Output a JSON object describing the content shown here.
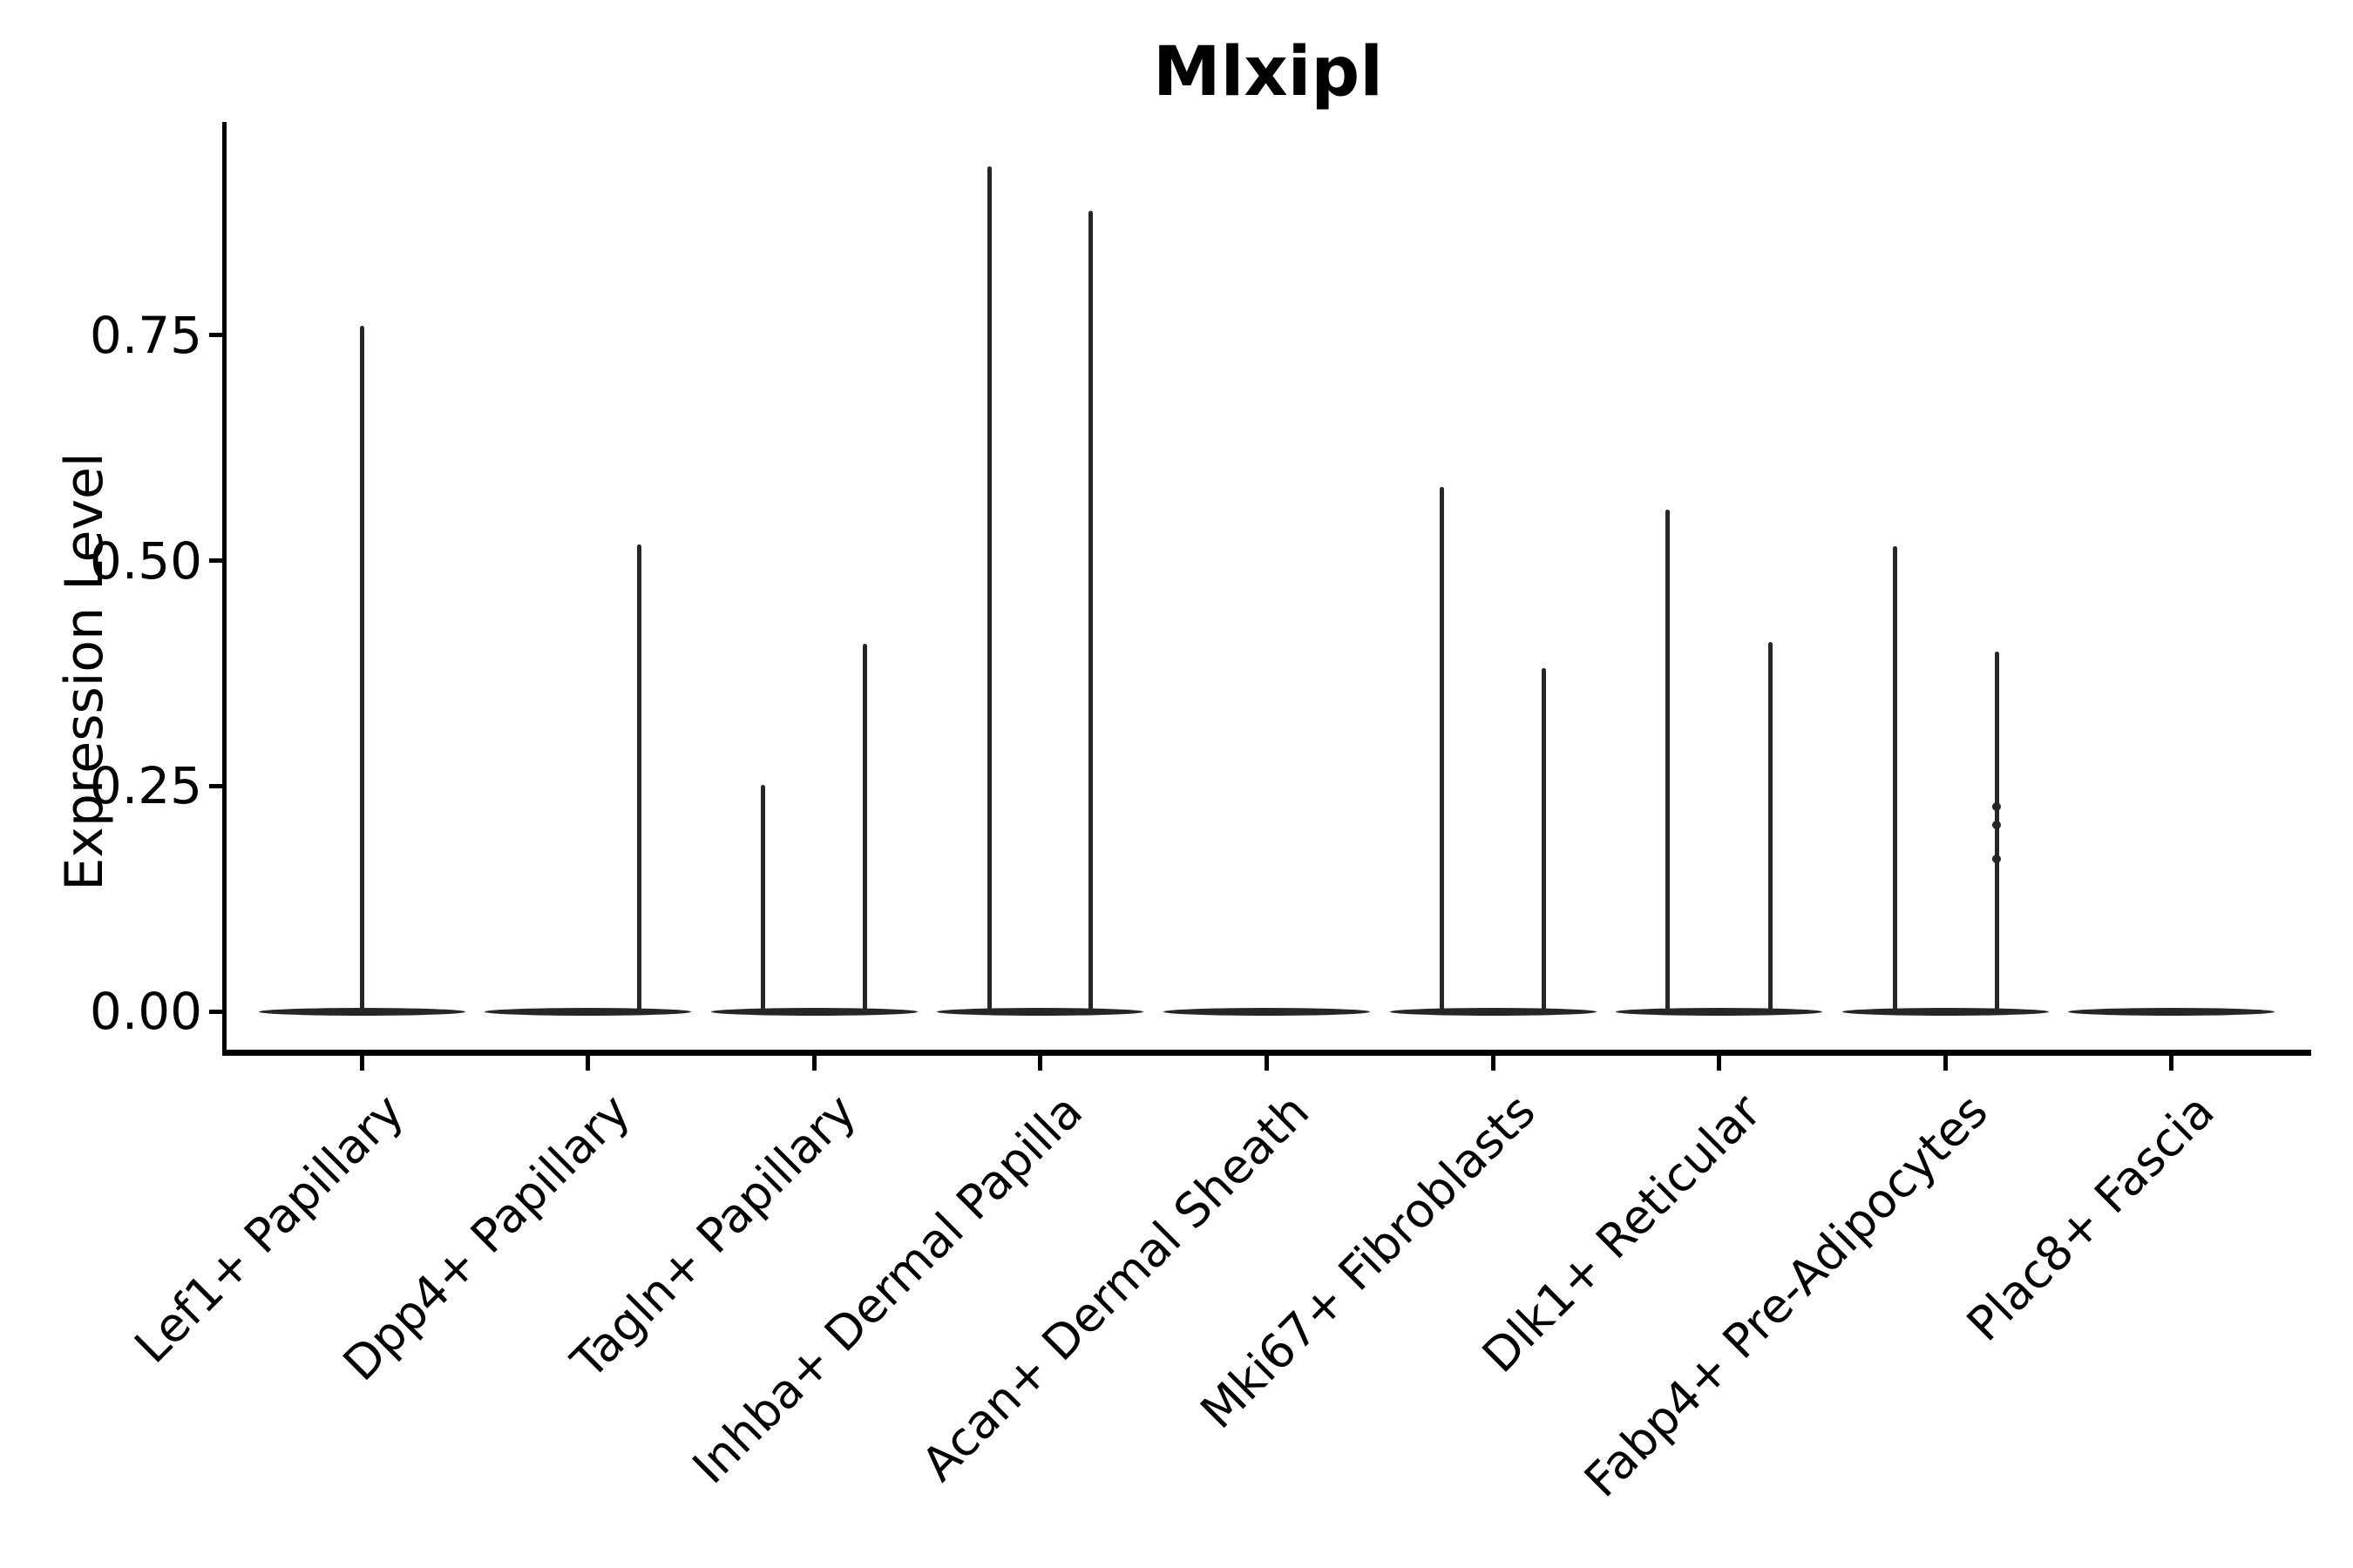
{
  "title": "Mlxipl",
  "y_axis": {
    "label": "Expression Level",
    "tick_labels": [
      "0.00",
      "0.25",
      "0.50",
      "0.75"
    ],
    "tick_values": [
      0.0,
      0.25,
      0.5,
      0.75
    ]
  },
  "x_axis": {
    "categories": [
      "Lef1+ Papillary",
      "Dpp4+ Papillary",
      "Tagln+ Papillary",
      "Inhba+ Dermal Papilla",
      "Acan+ Dermal Sheath",
      "Mki67+ Fibroblasts",
      "Dlk1+ Reticular",
      "Fabp4+ Pre-Adipocytes",
      "Plac8+ Fascia"
    ],
    "label_rotation_deg": 45
  },
  "colors": {
    "violin_stroke": "#262626",
    "axis": "#000000",
    "text": "#000000",
    "background": "#ffffff"
  },
  "chart_data": {
    "type": "violin",
    "title": "Mlxipl",
    "xlabel": "",
    "ylabel": "Expression Level",
    "ylim": [
      0.0,
      0.99
    ],
    "yticks": [
      0.0,
      0.25,
      0.5,
      0.75
    ],
    "ytick_labels": [
      "0.00",
      "0.25",
      "0.50",
      "0.75"
    ],
    "grid": false,
    "legend": "none",
    "categories": [
      "Lef1+ Papillary",
      "Dpp4+ Papillary",
      "Tagln+ Papillary",
      "Inhba+ Dermal Papilla",
      "Acan+ Dermal Sheath",
      "Mki67+ Fibroblasts",
      "Dlk1+ Reticular",
      "Fabp4+ Pre-Adipocytes",
      "Plac8+ Fascia"
    ],
    "note": "Each category shows a collapsed violin: a flat lens at expression 0 plus thin vertical density spikes reaching the maximum expression of rare positive cells. offset_frac is the horizontal offset of each spike from the category center, as a fraction of category spacing.",
    "violins": [
      {
        "category": "Lef1+ Papillary",
        "baseline_value": 0.0,
        "spikes": [
          {
            "offset_frac": 0.0,
            "max": 0.76
          }
        ]
      },
      {
        "category": "Dpp4+ Papillary",
        "baseline_value": 0.0,
        "spikes": [
          {
            "offset_frac": 0.225,
            "max": 0.518
          }
        ]
      },
      {
        "category": "Tagln+ Papillary",
        "baseline_value": 0.0,
        "spikes": [
          {
            "offset_frac": -0.228,
            "max": 0.251
          },
          {
            "offset_frac": 0.226,
            "max": 0.408
          }
        ]
      },
      {
        "category": "Inhba+ Dermal Papilla",
        "baseline_value": 0.0,
        "spikes": [
          {
            "offset_frac": -0.223,
            "max": 0.937
          },
          {
            "offset_frac": 0.224,
            "max": 0.888
          }
        ]
      },
      {
        "category": "Acan+ Dermal Sheath",
        "baseline_value": 0.0,
        "spikes": []
      },
      {
        "category": "Mki67+ Fibroblasts",
        "baseline_value": 0.0,
        "spikes": [
          {
            "offset_frac": -0.227,
            "max": 0.582
          },
          {
            "offset_frac": 0.227,
            "max": 0.381
          }
        ]
      },
      {
        "category": "Dlk1+ Reticular",
        "baseline_value": 0.0,
        "spikes": [
          {
            "offset_frac": -0.226,
            "max": 0.557
          },
          {
            "offset_frac": 0.225,
            "max": 0.41
          }
        ]
      },
      {
        "category": "Fabp4+ Pre-Adipocytes",
        "baseline_value": 0.0,
        "spikes": [
          {
            "offset_frac": -0.224,
            "max": 0.516
          },
          {
            "offset_frac": 0.227,
            "max": 0.399,
            "bumps": [
              0.227,
              0.207,
              0.169
            ]
          }
        ]
      },
      {
        "category": "Plac8+ Fascia",
        "baseline_value": 0.0,
        "spikes": []
      }
    ]
  }
}
